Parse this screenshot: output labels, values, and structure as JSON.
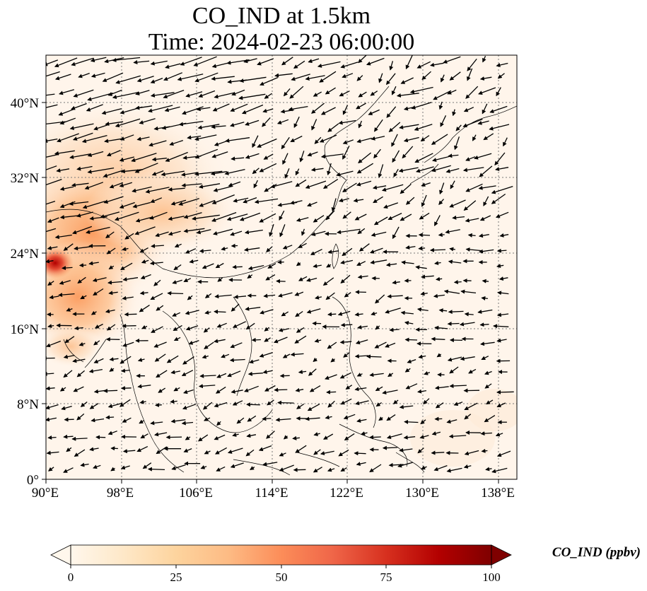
{
  "title": {
    "line1": "CO_IND at 1.5km",
    "line2": "Time: 2024-02-23 06:00:00"
  },
  "map": {
    "lon_range": [
      90,
      140
    ],
    "lat_range": [
      0,
      45
    ],
    "x_ticks": [
      "90°E",
      "98°E",
      "106°E",
      "114°E",
      "122°E",
      "130°E",
      "138°E"
    ],
    "x_tick_values": [
      90,
      98,
      106,
      114,
      122,
      130,
      138
    ],
    "y_ticks": [
      "0°",
      "8°N",
      "16°N",
      "24°N",
      "32°N",
      "40°N"
    ],
    "y_tick_values": [
      0,
      8,
      16,
      24,
      32,
      40
    ],
    "gridlines": true,
    "background_color": "#fff5eb",
    "plume_colors": [
      "#fde0c4",
      "#fdc08d",
      "#fb9a5c",
      "#e34a33",
      "#b30000"
    ]
  },
  "colorbar": {
    "label": "CO_IND (ppbv)",
    "ticks": [
      "0",
      "25",
      "50",
      "75",
      "100"
    ],
    "tick_values": [
      0,
      25,
      50,
      75,
      100
    ],
    "range": [
      0,
      100
    ],
    "colormap": "OrRd",
    "extend": "both",
    "colors": [
      "#fff7ec",
      "#fee8c8",
      "#fdd49e",
      "#fdbb84",
      "#fc8d59",
      "#ef6548",
      "#d7301f",
      "#b30000",
      "#7f0000"
    ]
  },
  "wind_vectors": {
    "color": "#000000",
    "note_icon": "wind-arrow-icon"
  }
}
